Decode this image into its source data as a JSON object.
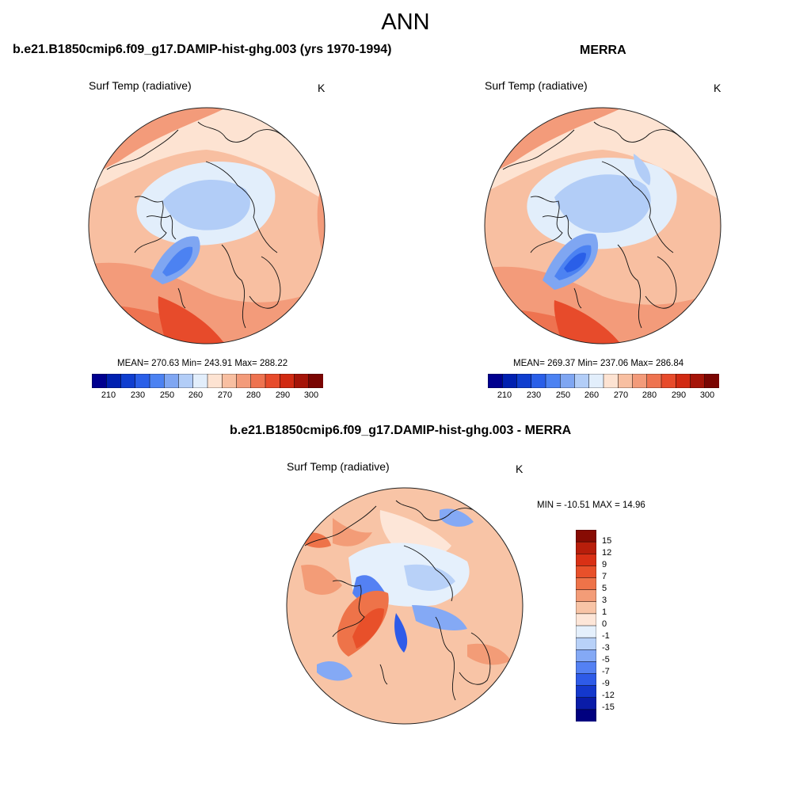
{
  "title": "ANN",
  "colors": {
    "abs_palette": [
      "#00008f",
      "#0020b0",
      "#0f3ecf",
      "#2a5fe8",
      "#4c82f2",
      "#7fa6f2",
      "#b2cdf7",
      "#e2eefb",
      "#fde3d2",
      "#f8bfa1",
      "#f39b7a",
      "#ee7350",
      "#e74b2b",
      "#d12a12",
      "#a51408",
      "#7a0502"
    ],
    "diff_palette": [
      "#00007f",
      "#0a1ca8",
      "#1438cc",
      "#2e5be8",
      "#5481f3",
      "#84a9f5",
      "#b8d1f8",
      "#e5f0fc",
      "#fde6d8",
      "#f8c4a6",
      "#f39c77",
      "#ee7349",
      "#e8502a",
      "#d93015",
      "#b81e0b",
      "#870b03"
    ],
    "ocean_ice": "#b6cef5",
    "ocean_deep": "#4c82f2",
    "land_warm": "#ee7350",
    "coast": "#111111"
  },
  "panels": {
    "case": {
      "title": "b.e21.B1850cmip6.f09_g17.DAMIP-hist-ghg.003 (yrs 1970-1994)",
      "left_string": "Surf Temp (radiative)",
      "units": "K",
      "stats": "MEAN= 270.63  Min= 243.91  Max= 288.22"
    },
    "obs": {
      "title": "MERRA",
      "left_string": "Surf Temp (radiative)",
      "units": "K",
      "stats": "MEAN= 269.37  Min= 237.06  Max= 286.84"
    },
    "diff": {
      "title": "b.e21.B1850cmip6.f09_g17.DAMIP-hist-ghg.003 - MERRA",
      "left_string": "Surf Temp (radiative)",
      "units": "K",
      "stats": "MIN = -10.51 MAX =  14.96"
    }
  },
  "colorbar_abs": {
    "labels": [
      "210",
      "230",
      "250",
      "260",
      "270",
      "280",
      "290",
      "300"
    ]
  },
  "colorbar_diff": {
    "labels": [
      "15",
      "12",
      "9",
      "7",
      "5",
      "3",
      "1",
      "0",
      "-1",
      "-3",
      "-5",
      "-7",
      "-9",
      "-12",
      "-15"
    ]
  }
}
